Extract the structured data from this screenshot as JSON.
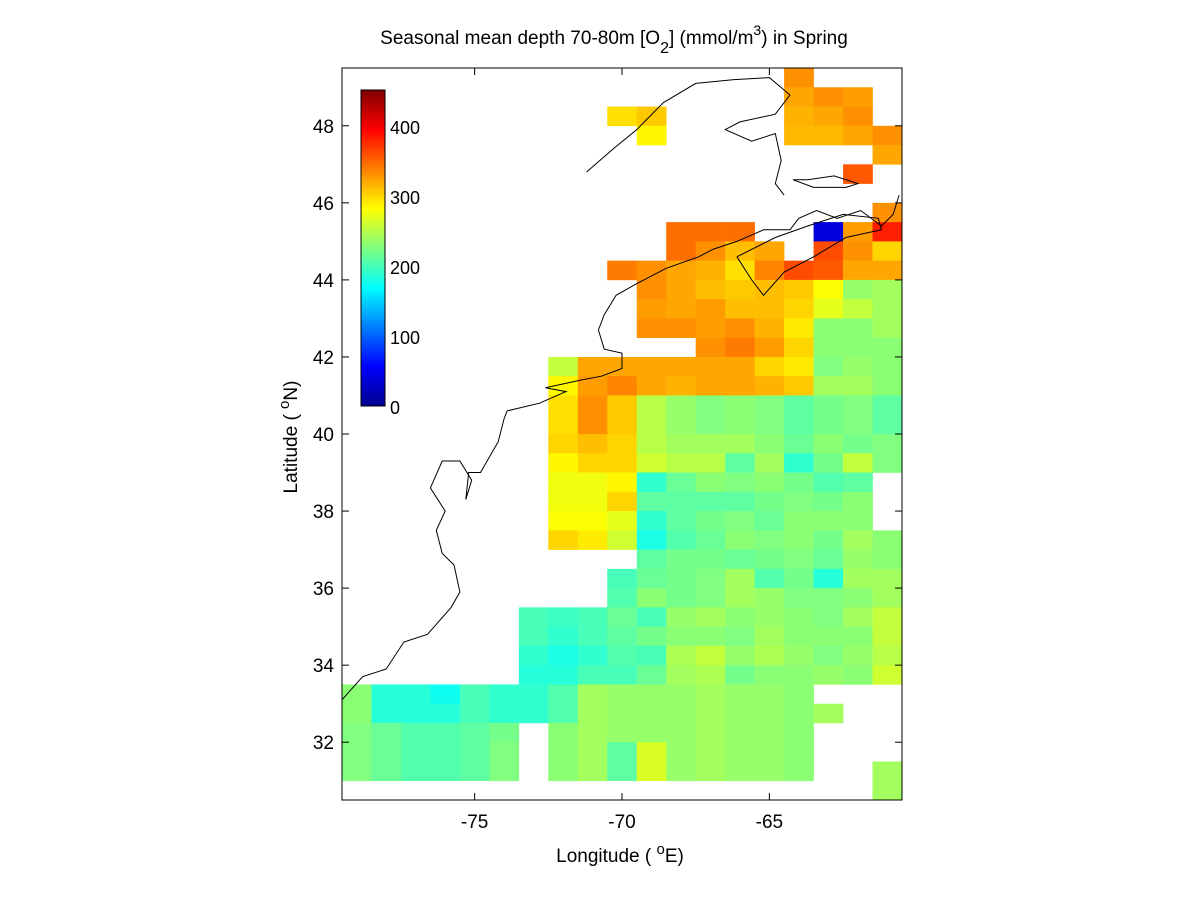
{
  "title": {
    "prefix": "Seasonal mean depth 70-80m [O",
    "sub": "2",
    "middle": "] (mmol/m",
    "sup": "3",
    "suffix": ") in  Spring"
  },
  "colorbar": {
    "ticks": [
      "0",
      "100",
      "200",
      "300",
      "400"
    ]
  },
  "chart_data": {
    "type": "heatmap",
    "title": "Seasonal mean depth 70-80m [O2] (mmol/m3) in Spring",
    "xlabel": "Longitude ( °E)",
    "ylabel": "Latitude ( °N)",
    "xlabel_parts": {
      "pre": "Longitude ( ",
      "deg": "o",
      "post": "E)"
    },
    "ylabel_parts": {
      "pre": "Latitude ( ",
      "deg": "o",
      "post": "N)"
    },
    "xlim": [
      -79.5,
      -60.5
    ],
    "ylim": [
      30.5,
      49.5
    ],
    "xticks": [
      -75,
      -70,
      -65
    ],
    "xtick_labels": [
      "-75",
      "-70",
      "-65"
    ],
    "yticks": [
      32,
      34,
      36,
      38,
      40,
      42,
      44,
      46,
      48
    ],
    "ytick_labels": [
      "32",
      "34",
      "36",
      "38",
      "40",
      "42",
      "44",
      "46",
      "48"
    ],
    "clim": [
      0,
      450
    ],
    "colormap": "jet",
    "grid": false,
    "cell_size_deg": 1,
    "row_lat_start": 49,
    "col_lon_start": -79.5,
    "values": [
      [
        null,
        null,
        null,
        null,
        null,
        null,
        null,
        null,
        null,
        null,
        null,
        null,
        null,
        null,
        null,
        330,
        null,
        null,
        null
      ],
      [
        null,
        null,
        null,
        null,
        null,
        null,
        null,
        null,
        null,
        null,
        null,
        null,
        null,
        null,
        null,
        320,
        330,
        325,
        null
      ],
      [
        null,
        null,
        null,
        null,
        null,
        null,
        null,
        null,
        null,
        295,
        305,
        null,
        null,
        null,
        null,
        315,
        320,
        330,
        null
      ],
      [
        null,
        null,
        null,
        null,
        null,
        null,
        null,
        null,
        null,
        null,
        285,
        null,
        null,
        null,
        null,
        312,
        312,
        320,
        330
      ],
      [
        null,
        null,
        null,
        null,
        null,
        null,
        null,
        null,
        null,
        null,
        null,
        null,
        null,
        null,
        null,
        null,
        null,
        null,
        320
      ],
      [
        null,
        null,
        null,
        null,
        null,
        null,
        null,
        null,
        null,
        null,
        null,
        null,
        null,
        null,
        null,
        null,
        null,
        355,
        null
      ],
      [
        null,
        null,
        null,
        null,
        null,
        null,
        null,
        null,
        null,
        null,
        null,
        null,
        null,
        null,
        null,
        null,
        null,
        null,
        null
      ],
      [
        null,
        null,
        null,
        null,
        null,
        null,
        null,
        null,
        null,
        null,
        null,
        null,
        null,
        null,
        null,
        null,
        null,
        null,
        330
      ],
      [
        null,
        null,
        null,
        null,
        null,
        null,
        null,
        null,
        null,
        null,
        null,
        345,
        345,
        345,
        null,
        null,
        40,
        325,
        380
      ],
      [
        null,
        null,
        null,
        null,
        null,
        null,
        null,
        null,
        null,
        null,
        null,
        345,
        330,
        310,
        320,
        null,
        360,
        330,
        300
      ],
      [
        null,
        null,
        null,
        null,
        null,
        null,
        null,
        null,
        null,
        340,
        330,
        320,
        315,
        295,
        335,
        360,
        355,
        320,
        320
      ],
      [
        null,
        null,
        null,
        null,
        null,
        null,
        null,
        null,
        null,
        null,
        330,
        320,
        310,
        305,
        310,
        305,
        280,
        235,
        240
      ],
      [
        null,
        null,
        null,
        null,
        null,
        null,
        null,
        null,
        null,
        null,
        325,
        320,
        325,
        310,
        310,
        300,
        270,
        255,
        240
      ],
      [
        null,
        null,
        null,
        null,
        null,
        null,
        null,
        null,
        null,
        null,
        330,
        330,
        325,
        330,
        315,
        290,
        230,
        230,
        240
      ],
      [
        null,
        null,
        null,
        null,
        null,
        null,
        null,
        null,
        null,
        null,
        null,
        null,
        330,
        340,
        325,
        300,
        230,
        230,
        230
      ],
      [
        null,
        null,
        null,
        null,
        null,
        null,
        null,
        255,
        320,
        320,
        320,
        320,
        320,
        320,
        300,
        290,
        225,
        235,
        230
      ],
      [
        null,
        null,
        null,
        null,
        null,
        null,
        null,
        285,
        325,
        335,
        320,
        315,
        320,
        320,
        315,
        305,
        240,
        240,
        230
      ],
      [
        null,
        null,
        null,
        null,
        null,
        null,
        null,
        295,
        330,
        305,
        250,
        235,
        225,
        230,
        225,
        210,
        220,
        225,
        210
      ],
      [
        null,
        null,
        null,
        null,
        null,
        null,
        null,
        295,
        330,
        305,
        250,
        235,
        225,
        230,
        225,
        210,
        220,
        225,
        210
      ],
      [
        null,
        null,
        null,
        null,
        null,
        null,
        null,
        300,
        310,
        300,
        250,
        240,
        240,
        240,
        230,
        215,
        230,
        220,
        225
      ],
      [
        null,
        null,
        null,
        null,
        null,
        null,
        null,
        285,
        300,
        300,
        260,
        250,
        250,
        210,
        240,
        190,
        220,
        255,
        225
      ],
      [
        null,
        null,
        null,
        null,
        null,
        null,
        null,
        275,
        275,
        285,
        190,
        215,
        230,
        225,
        230,
        220,
        205,
        210,
        null
      ],
      [
        null,
        null,
        null,
        null,
        null,
        null,
        null,
        275,
        275,
        300,
        210,
        210,
        210,
        210,
        220,
        225,
        220,
        230,
        null
      ],
      [
        null,
        null,
        null,
        null,
        null,
        null,
        null,
        280,
        280,
        270,
        190,
        210,
        220,
        225,
        215,
        230,
        230,
        230,
        null
      ],
      [
        null,
        null,
        null,
        null,
        null,
        null,
        null,
        300,
        290,
        260,
        180,
        205,
        215,
        230,
        225,
        230,
        220,
        240,
        230
      ],
      [
        null,
        null,
        null,
        null,
        null,
        null,
        null,
        null,
        null,
        null,
        210,
        220,
        220,
        215,
        220,
        225,
        215,
        235,
        230
      ],
      [
        null,
        null,
        null,
        null,
        null,
        null,
        null,
        null,
        null,
        200,
        215,
        220,
        225,
        240,
        205,
        220,
        185,
        240,
        240
      ],
      [
        null,
        null,
        null,
        null,
        null,
        null,
        null,
        null,
        null,
        205,
        230,
        220,
        225,
        240,
        235,
        225,
        225,
        230,
        240
      ],
      [
        null,
        null,
        null,
        null,
        null,
        null,
        200,
        195,
        200,
        215,
        200,
        235,
        240,
        230,
        235,
        230,
        225,
        240,
        255
      ],
      [
        null,
        null,
        null,
        null,
        null,
        null,
        200,
        190,
        200,
        210,
        220,
        230,
        230,
        225,
        240,
        230,
        230,
        230,
        255
      ],
      [
        null,
        null,
        null,
        null,
        null,
        null,
        190,
        180,
        190,
        205,
        200,
        245,
        255,
        235,
        245,
        235,
        225,
        235,
        250
      ],
      [
        null,
        null,
        null,
        null,
        null,
        null,
        185,
        185,
        200,
        200,
        215,
        240,
        245,
        220,
        230,
        230,
        235,
        230,
        260
      ],
      [
        230,
        185,
        185,
        175,
        200,
        190,
        190,
        205,
        240,
        235,
        235,
        235,
        240,
        235,
        235,
        230,
        null,
        null,
        null
      ],
      [
        230,
        185,
        185,
        185,
        200,
        190,
        190,
        205,
        240,
        235,
        235,
        235,
        240,
        235,
        235,
        230,
        240,
        null,
        null
      ],
      [
        225,
        215,
        205,
        205,
        210,
        220,
        null,
        230,
        240,
        235,
        235,
        235,
        240,
        235,
        235,
        230,
        null,
        null,
        null
      ],
      [
        225,
        215,
        205,
        205,
        210,
        225,
        null,
        230,
        240,
        210,
        265,
        235,
        240,
        235,
        235,
        230,
        null,
        null,
        null
      ],
      [
        225,
        215,
        205,
        205,
        210,
        225,
        null,
        230,
        240,
        210,
        265,
        235,
        240,
        235,
        235,
        230,
        null,
        null,
        240
      ],
      [
        null,
        null,
        null,
        null,
        null,
        null,
        null,
        null,
        null,
        null,
        null,
        null,
        null,
        null,
        null,
        null,
        null,
        null,
        240
      ]
    ],
    "row_step_deg": 0.5
  }
}
